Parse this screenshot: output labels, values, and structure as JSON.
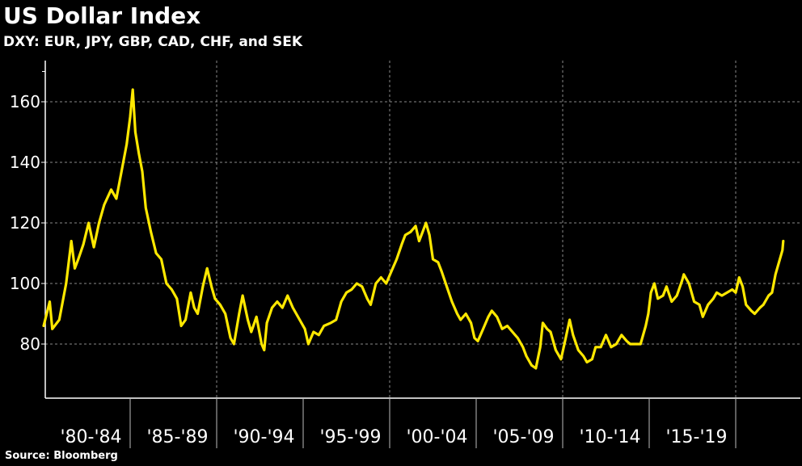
{
  "chart_data": {
    "type": "line",
    "title": "US Dollar Index",
    "subtitle": "DXY: EUR, JPY, GBP, CAD, CHF, and SEK",
    "source": "Source: Bloomberg",
    "xlabel": "",
    "ylabel": "",
    "ylim": [
      53,
      172
    ],
    "xlim": [
      1980,
      2023.5
    ],
    "yticks": [
      "80",
      "100",
      "120",
      "140",
      "160"
    ],
    "ytick_values": [
      80,
      100,
      120,
      140,
      160
    ],
    "xperiod_labels": [
      "'80-'84",
      "'85-'89",
      "'90-'94",
      "'95-'99",
      "'00-'04",
      "'05-'09",
      "'10-'14",
      "'15-'19"
    ],
    "xperiod_starts": [
      1980,
      1985,
      1990,
      1995,
      2000,
      2005,
      2010,
      2015,
      2020
    ],
    "grid": true,
    "line_color": "#ffe800",
    "series": [
      {
        "name": "DXY",
        "x": [
          1980.0,
          1980.35,
          1980.5,
          1980.9,
          1981.3,
          1981.6,
          1981.8,
          1982.0,
          1982.3,
          1982.6,
          1982.9,
          1983.2,
          1983.5,
          1983.9,
          1984.2,
          1984.5,
          1984.8,
          1985.0,
          1985.15,
          1985.3,
          1985.5,
          1985.7,
          1985.9,
          1986.2,
          1986.5,
          1986.8,
          1987.1,
          1987.4,
          1987.7,
          1987.95,
          1988.2,
          1988.5,
          1988.7,
          1988.9,
          1989.2,
          1989.45,
          1989.7,
          1989.9,
          1990.2,
          1990.5,
          1990.8,
          1991.0,
          1991.3,
          1991.5,
          1991.8,
          1992.0,
          1992.3,
          1992.6,
          1992.75,
          1992.9,
          1993.2,
          1993.5,
          1993.8,
          1994.1,
          1994.4,
          1994.8,
          1995.1,
          1995.3,
          1995.6,
          1995.9,
          1996.2,
          1996.6,
          1996.9,
          1997.2,
          1997.5,
          1997.8,
          1998.1,
          1998.4,
          1998.7,
          1998.9,
          1999.2,
          1999.5,
          1999.8,
          2000.1,
          2000.4,
          2000.7,
          2000.9,
          2001.2,
          2001.5,
          2001.7,
          2001.9,
          2002.1,
          2002.3,
          2002.5,
          2002.8,
          2003.0,
          2003.3,
          2003.6,
          2003.9,
          2004.1,
          2004.4,
          2004.7,
          2004.9,
          2005.1,
          2005.4,
          2005.7,
          2005.9,
          2006.2,
          2006.5,
          2006.8,
          2007.1,
          2007.4,
          2007.7,
          2007.9,
          2008.2,
          2008.45,
          2008.7,
          2008.85,
          2009.1,
          2009.3,
          2009.6,
          2009.9,
          2010.1,
          2010.4,
          2010.6,
          2010.9,
          2011.2,
          2011.4,
          2011.7,
          2011.9,
          2012.2,
          2012.5,
          2012.8,
          2013.1,
          2013.4,
          2013.7,
          2013.9,
          2014.2,
          2014.5,
          2014.8,
          2014.95,
          2015.1,
          2015.3,
          2015.5,
          2015.8,
          2016.0,
          2016.3,
          2016.6,
          2016.9,
          2017.0,
          2017.3,
          2017.6,
          2017.9,
          2018.1,
          2018.4,
          2018.7,
          2018.9,
          2019.2,
          2019.5,
          2019.8,
          2020.0,
          2020.2,
          2020.4,
          2020.6,
          2020.9,
          2021.1,
          2021.4,
          2021.6,
          2021.9,
          2022.1,
          2022.3,
          2022.5,
          2022.7,
          2022.75
        ],
        "values": [
          86,
          94,
          85,
          88,
          100,
          114,
          105,
          108,
          113,
          120,
          112,
          120,
          126,
          131,
          128,
          137,
          146,
          155,
          164,
          150,
          143,
          137,
          125,
          117,
          110,
          108,
          100,
          98,
          95,
          86,
          88,
          97,
          92,
          90,
          99,
          105,
          99,
          95,
          93,
          90,
          82,
          80,
          90,
          96,
          88,
          84,
          89,
          80,
          78,
          87,
          92,
          94,
          92,
          96,
          92,
          88,
          85,
          80,
          84,
          83,
          86,
          87,
          88,
          94,
          97,
          98,
          100,
          99,
          95,
          93,
          100,
          102,
          100,
          104,
          108,
          113,
          116,
          117,
          119,
          114,
          117,
          120,
          116,
          108,
          107,
          104,
          99,
          94,
          90,
          88,
          90,
          87,
          82,
          81,
          85,
          89,
          91,
          89,
          85,
          86,
          84,
          82,
          79,
          76,
          73,
          72,
          79,
          87,
          85,
          84,
          78,
          75,
          80,
          88,
          83,
          78,
          76,
          74,
          75,
          79,
          79,
          83,
          79,
          80,
          83,
          81,
          80,
          80,
          80,
          86,
          90,
          97,
          100,
          95,
          96,
          99,
          94,
          96,
          101,
          103,
          100,
          94,
          93,
          89,
          93,
          95,
          97,
          96,
          97,
          98,
          97,
          102,
          99,
          93,
          91,
          90,
          92,
          93,
          96,
          97,
          103,
          107,
          111,
          114
        ]
      }
    ]
  }
}
